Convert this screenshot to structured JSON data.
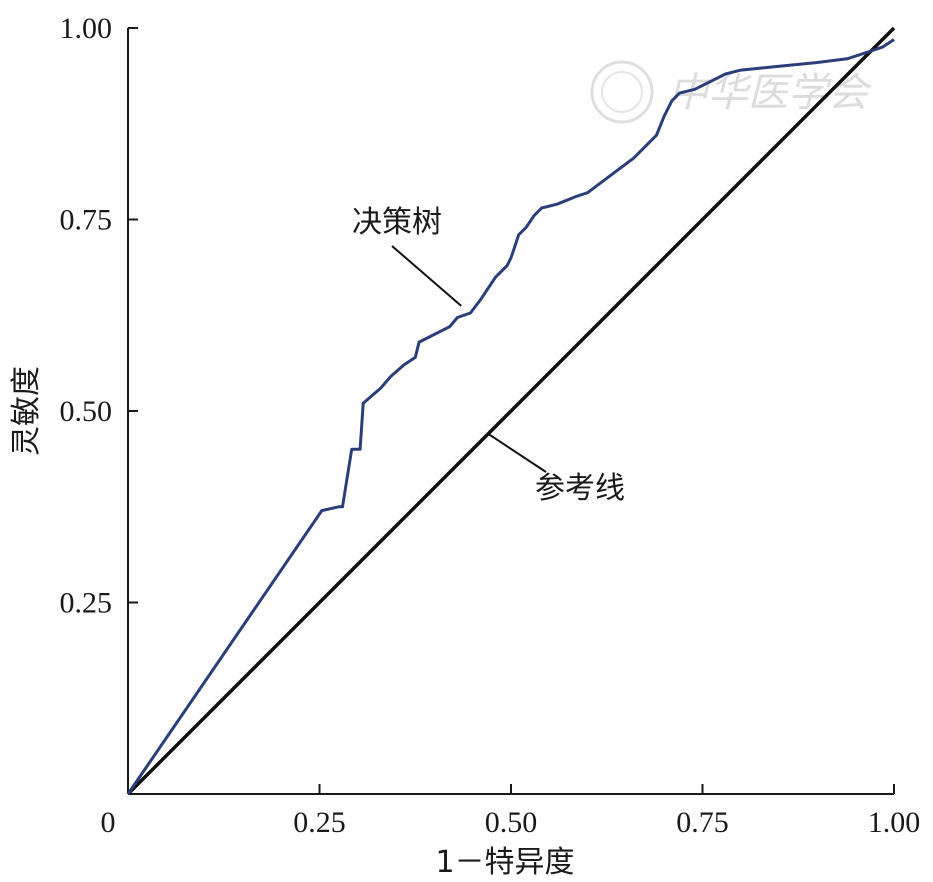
{
  "watermark": "中华医学会",
  "chart_data": {
    "type": "line",
    "xlabel": "1－特异度",
    "ylabel": "灵敏度",
    "xlim": [
      0,
      1
    ],
    "ylim": [
      0,
      1
    ],
    "x_ticks": [
      {
        "value": 0,
        "label": "0"
      },
      {
        "value": 0.25,
        "label": "0.25"
      },
      {
        "value": 0.5,
        "label": "0.50"
      },
      {
        "value": 0.75,
        "label": "0.75"
      },
      {
        "value": 1,
        "label": "1.00"
      }
    ],
    "y_ticks": [
      {
        "value": 0.25,
        "label": "0.25"
      },
      {
        "value": 0.5,
        "label": "0.50"
      },
      {
        "value": 0.75,
        "label": "0.75"
      },
      {
        "value": 1,
        "label": "1.00"
      }
    ],
    "grid": false,
    "legend": "none",
    "series": [
      {
        "name": "决策树",
        "color": "#2a3f7a",
        "points": [
          [
            0,
            0
          ],
          [
            0.253,
            0.37
          ],
          [
            0.275,
            0.375
          ],
          [
            0.28,
            0.375
          ],
          [
            0.292,
            0.45
          ],
          [
            0.303,
            0.45
          ],
          [
            0.307,
            0.51
          ],
          [
            0.33,
            0.53
          ],
          [
            0.343,
            0.545
          ],
          [
            0.36,
            0.56
          ],
          [
            0.375,
            0.57
          ],
          [
            0.38,
            0.59
          ],
          [
            0.4,
            0.6
          ],
          [
            0.42,
            0.61
          ],
          [
            0.43,
            0.622
          ],
          [
            0.447,
            0.628
          ],
          [
            0.46,
            0.645
          ],
          [
            0.47,
            0.66
          ],
          [
            0.48,
            0.675
          ],
          [
            0.495,
            0.69
          ],
          [
            0.5,
            0.7
          ],
          [
            0.51,
            0.73
          ],
          [
            0.52,
            0.74
          ],
          [
            0.53,
            0.755
          ],
          [
            0.54,
            0.765
          ],
          [
            0.56,
            0.77
          ],
          [
            0.585,
            0.78
          ],
          [
            0.6,
            0.785
          ],
          [
            0.62,
            0.8
          ],
          [
            0.64,
            0.815
          ],
          [
            0.66,
            0.83
          ],
          [
            0.67,
            0.84
          ],
          [
            0.69,
            0.86
          ],
          [
            0.7,
            0.885
          ],
          [
            0.71,
            0.905
          ],
          [
            0.72,
            0.915
          ],
          [
            0.74,
            0.92
          ],
          [
            0.78,
            0.94
          ],
          [
            0.8,
            0.945
          ],
          [
            0.85,
            0.95
          ],
          [
            0.9,
            0.955
          ],
          [
            0.94,
            0.96
          ],
          [
            0.97,
            0.97
          ],
          [
            0.985,
            0.975
          ],
          [
            1,
            0.985
          ]
        ]
      },
      {
        "name": "参考线",
        "color": "#111111",
        "points": [
          [
            0,
            0
          ],
          [
            1,
            1
          ]
        ]
      }
    ],
    "annotations": [
      {
        "text": "决策树",
        "target": [
          0.435,
          0.645
        ],
        "series": "决策树"
      },
      {
        "text": "参考线",
        "target": [
          0.465,
          0.465
        ],
        "series": "参考线"
      }
    ]
  }
}
